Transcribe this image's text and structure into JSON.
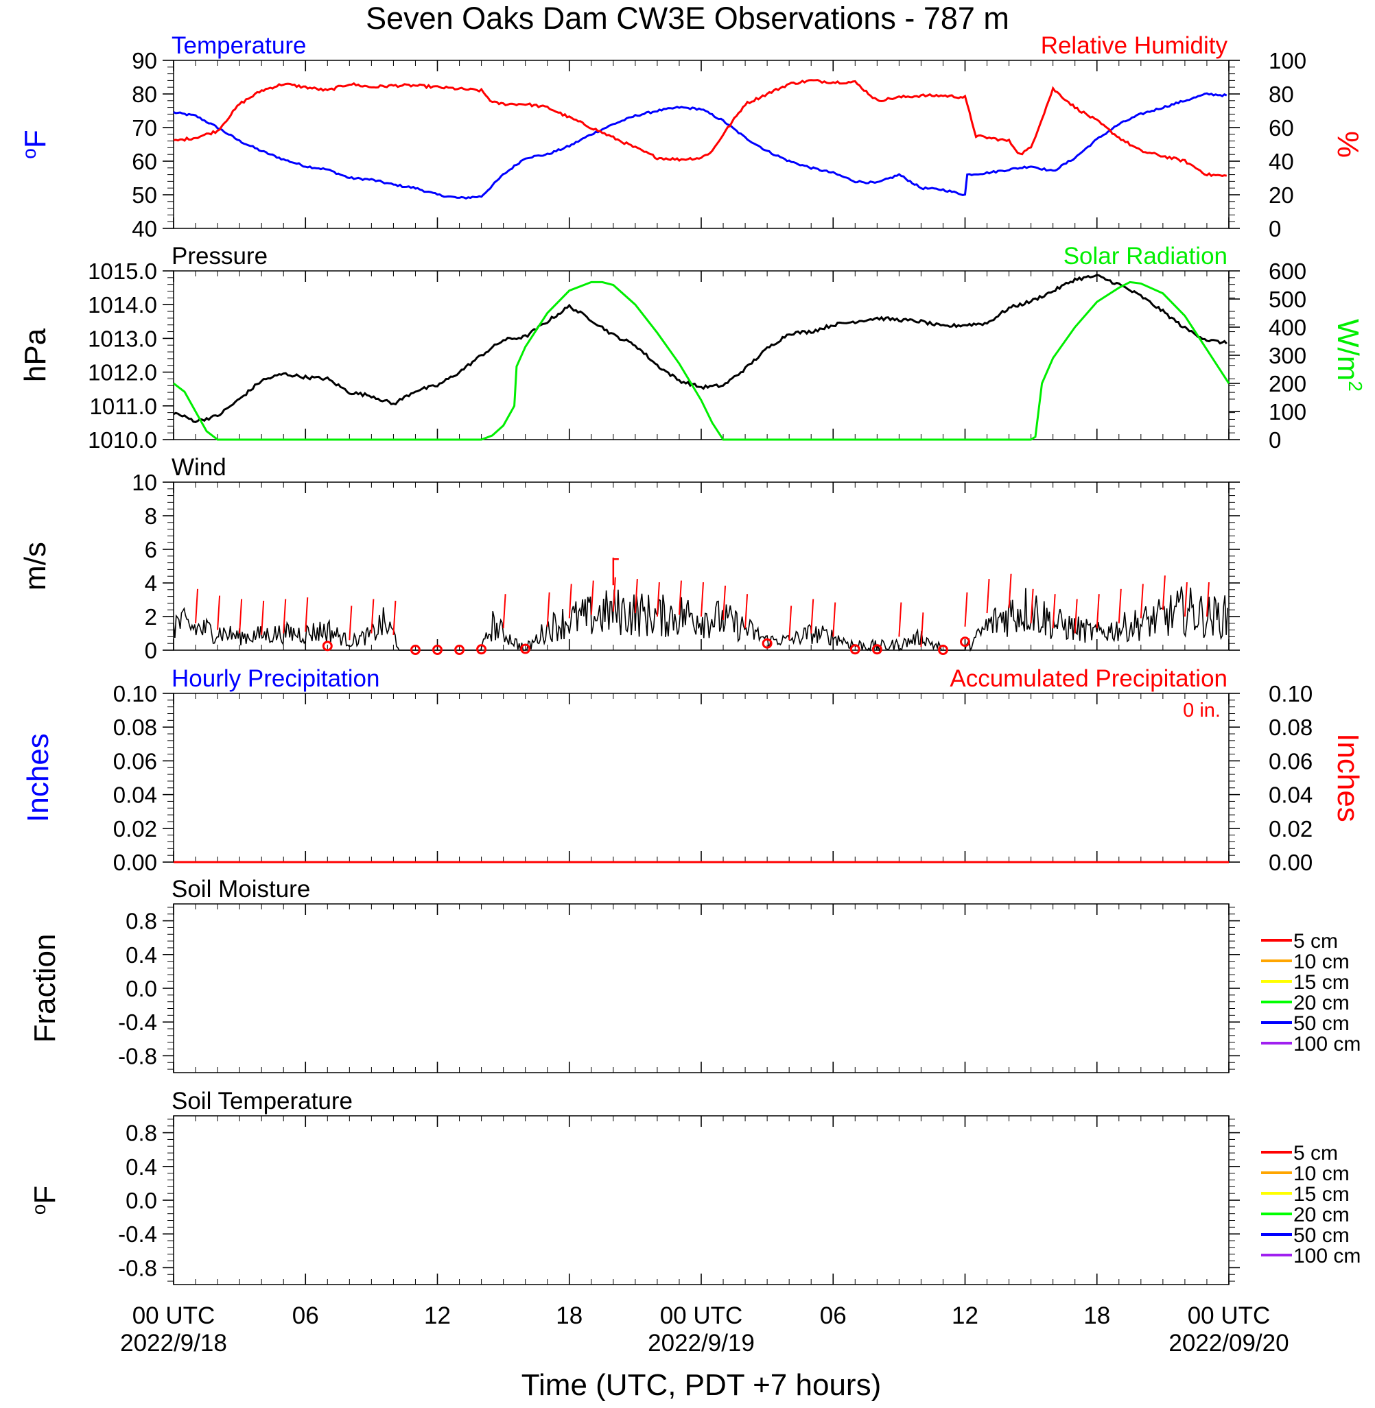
{
  "title": "Seven Oaks Dam CW3E Observations - 787 m",
  "xaxis": {
    "label": "Time (UTC, PDT +7 hours)",
    "range_hours": [
      0,
      48
    ],
    "ticks": [
      {
        "h": 0,
        "label": "00 UTC",
        "date": "2022/9/18"
      },
      {
        "h": 6,
        "label": "06",
        "date": ""
      },
      {
        "h": 12,
        "label": "12",
        "date": ""
      },
      {
        "h": 18,
        "label": "18",
        "date": ""
      },
      {
        "h": 24,
        "label": "00 UTC",
        "date": "2022/9/19"
      },
      {
        "h": 30,
        "label": "06",
        "date": ""
      },
      {
        "h": 36,
        "label": "12",
        "date": ""
      },
      {
        "h": 42,
        "label": "18",
        "date": ""
      },
      {
        "h": 48,
        "label": "00 UTC",
        "date": "2022/09/20"
      }
    ]
  },
  "colors": {
    "temperature": "#0000ff",
    "humidity": "#ff0000",
    "pressure": "#000000",
    "solar": "#00ee00",
    "wind": "#000000",
    "wind_barb": "#ff0000",
    "precip_hourly": "#0000ff",
    "precip_accum": "#ff0000"
  },
  "chart_data": [
    {
      "id": "temp_rh",
      "type": "line",
      "title_left": "Temperature",
      "title_right": "Relative Humidity",
      "ylabel_left": "oF",
      "ylabel_right": "%",
      "ylim_left": [
        40,
        90
      ],
      "yticks_left": [
        "40",
        "50",
        "60",
        "70",
        "80",
        "90"
      ],
      "ylim_right": [
        0,
        100
      ],
      "yticks_right": [
        "0",
        "20",
        "40",
        "60",
        "80",
        "100"
      ],
      "series": [
        {
          "name": "Temperature",
          "axis": "left",
          "x": [
            0,
            1,
            2,
            3,
            4,
            5,
            6,
            7,
            8,
            9,
            10,
            11,
            12,
            13,
            14,
            15,
            16,
            17,
            18,
            19,
            20,
            21,
            22,
            23,
            24,
            25,
            26,
            27,
            28,
            29,
            30,
            31,
            32,
            33,
            34,
            35,
            36,
            36.1,
            37,
            38,
            39,
            40,
            41,
            42,
            43,
            44,
            45,
            46,
            47,
            48
          ],
          "y": [
            74.5,
            73.5,
            70,
            66,
            63,
            60.5,
            58.5,
            57.5,
            55,
            54.5,
            53,
            52,
            50,
            49,
            49.5,
            56,
            61,
            62,
            64.5,
            68,
            71,
            73.5,
            75,
            76,
            75.5,
            72,
            67,
            63,
            60,
            58,
            56.5,
            54,
            53.5,
            56,
            52,
            51.5,
            50,
            56,
            56.5,
            57.5,
            58.5,
            57,
            61,
            66.5,
            71,
            74,
            76,
            78,
            80,
            79.5
          ]
        },
        {
          "name": "Relative Humidity",
          "axis": "right",
          "x": [
            0,
            1,
            2,
            2.5,
            3,
            4,
            5,
            6,
            7,
            8,
            9,
            10,
            11,
            12,
            13,
            14,
            14.5,
            15,
            16,
            17,
            18,
            19,
            20,
            21,
            22,
            23,
            24,
            24.5,
            25,
            26,
            27,
            28,
            29,
            30,
            31,
            32,
            33,
            34,
            35,
            36,
            36.5,
            37,
            38,
            38.5,
            39,
            40,
            41,
            42,
            43,
            44,
            45,
            46,
            47,
            48
          ],
          "y": [
            52,
            54,
            58,
            66,
            74,
            82,
            86,
            84,
            82,
            86,
            84,
            85,
            85,
            84,
            83,
            82,
            75,
            74,
            74,
            72,
            66,
            60,
            54,
            48,
            42,
            41,
            42,
            46,
            56,
            74,
            80,
            86,
            88,
            87,
            87,
            76,
            78,
            79,
            79,
            78,
            55,
            54,
            52,
            44,
            48,
            83,
            72,
            64,
            54,
            46,
            43,
            40,
            32,
            31
          ]
        }
      ]
    },
    {
      "id": "pressure_solar",
      "type": "line",
      "title_left": "Pressure",
      "title_right": "Solar Radiation",
      "ylabel_left": "hPa",
      "ylabel_right": "W/m",
      "ylabel_right_sup": "2",
      "ylim_left": [
        1010,
        1015
      ],
      "yticks_left": [
        "1010.0",
        "1011.0",
        "1012.0",
        "1013.0",
        "1014.0",
        "1015.0"
      ],
      "ylim_right": [
        0,
        600
      ],
      "yticks_right": [
        "0",
        "100",
        "200",
        "300",
        "400",
        "500",
        "600"
      ],
      "series": [
        {
          "name": "Pressure",
          "axis": "left",
          "x": [
            0,
            1,
            2,
            3,
            4,
            5,
            6,
            7,
            8,
            9,
            10,
            11,
            12,
            13,
            14,
            15,
            16,
            17,
            18,
            19,
            20,
            21,
            22,
            23,
            24,
            25,
            26,
            27,
            28,
            29,
            30,
            31,
            32,
            33,
            34,
            35,
            36,
            37,
            38,
            39,
            40,
            41,
            42,
            43,
            44,
            45,
            46,
            47,
            48
          ],
          "y": [
            1010.8,
            1010.55,
            1010.7,
            1011.2,
            1011.75,
            1011.95,
            1011.85,
            1011.8,
            1011.4,
            1011.3,
            1011.05,
            1011.45,
            1011.6,
            1012.0,
            1012.5,
            1012.95,
            1013.05,
            1013.5,
            1013.95,
            1013.55,
            1013.1,
            1012.8,
            1012.2,
            1011.75,
            1011.55,
            1011.6,
            1012.1,
            1012.7,
            1013.15,
            1013.2,
            1013.4,
            1013.5,
            1013.6,
            1013.55,
            1013.5,
            1013.35,
            1013.4,
            1013.45,
            1013.9,
            1014.1,
            1014.4,
            1014.75,
            1014.85,
            1014.6,
            1014.25,
            1013.8,
            1013.3,
            1012.95,
            1012.85
          ]
        },
        {
          "name": "Solar Radiation",
          "axis": "right",
          "x": [
            0,
            0.5,
            1,
            1.5,
            2,
            4,
            8,
            12,
            13,
            14,
            14.5,
            15,
            15.5,
            15.6,
            16,
            17,
            18,
            19,
            19.5,
            20,
            21,
            22,
            23,
            24,
            24.5,
            25,
            28,
            32,
            36,
            39,
            39.2,
            39.5,
            40,
            41,
            42,
            43,
            43.5,
            44,
            45,
            46,
            47,
            48
          ],
          "y": [
            200,
            170,
            100,
            30,
            0,
            0,
            0,
            0,
            0,
            0,
            15,
            50,
            120,
            260,
            330,
            450,
            530,
            560,
            560,
            550,
            480,
            380,
            270,
            140,
            60,
            0,
            0,
            0,
            0,
            0,
            10,
            200,
            290,
            400,
            490,
            540,
            560,
            555,
            520,
            440,
            320,
            200
          ]
        }
      ]
    },
    {
      "id": "wind",
      "type": "line",
      "title_left": "Wind",
      "ylabel_left": "m/s",
      "ylim_left": [
        0,
        10
      ],
      "yticks_left": [
        "0",
        "2",
        "4",
        "6",
        "8",
        "10"
      ],
      "series": [
        {
          "name": "Wind",
          "axis": "left",
          "x": [
            0,
            1,
            2,
            3,
            4,
            5,
            6,
            7,
            8,
            9,
            9.5,
            10,
            10.3,
            11,
            12,
            13,
            14,
            14.5,
            15,
            16,
            17,
            18,
            19,
            20,
            21,
            22,
            23,
            24,
            25,
            26,
            27,
            28,
            29,
            30,
            31,
            32,
            33,
            34,
            35,
            36,
            37,
            38,
            39,
            40,
            41,
            42,
            43,
            44,
            45,
            46,
            47,
            48
          ],
          "y": [
            1.7,
            1.3,
            1.1,
            0.8,
            0.9,
            1.0,
            1.0,
            1.2,
            0.5,
            0.9,
            1.6,
            1.0,
            0.0,
            0.0,
            0.0,
            0.0,
            0.0,
            1.5,
            1.0,
            0.0,
            1.3,
            1.8,
            2.0,
            2.3,
            2.2,
            2.0,
            2.1,
            2.0,
            1.8,
            1.3,
            0.6,
            0.6,
            1.0,
            0.8,
            0.3,
            0.2,
            0.3,
            0.8,
            0.0,
            0.0,
            1.4,
            2.2,
            2.5,
            1.6,
            1.3,
            1.0,
            1.3,
            1.6,
            1.9,
            2.4,
            2.0,
            2.0
          ]
        },
        {
          "name": "Wind barbs",
          "axis": "left",
          "style": "barbs",
          "x": [
            1,
            2,
            3,
            4,
            5,
            6,
            8,
            9,
            10,
            15,
            17,
            18,
            19,
            20,
            21,
            22,
            23,
            24,
            25,
            26,
            28,
            29,
            30,
            33,
            34,
            36,
            37,
            38,
            39,
            40,
            41,
            42,
            43,
            44,
            45,
            46,
            47
          ],
          "y": [
            1.6,
            1.2,
            1.0,
            0.9,
            1.0,
            1.1,
            0.6,
            1.0,
            0.9,
            1.3,
            1.4,
            1.9,
            2.1,
            2.3,
            2.2,
            2.0,
            2.1,
            2.0,
            1.8,
            1.3,
            0.6,
            1.0,
            0.8,
            0.8,
            0.2,
            1.4,
            2.2,
            2.5,
            1.6,
            1.3,
            1.0,
            1.3,
            1.6,
            1.9,
            2.4,
            2.0,
            2.0
          ]
        },
        {
          "name": "Calm",
          "axis": "left",
          "style": "circles",
          "x": [
            7,
            11,
            12,
            13,
            14,
            16,
            27,
            31,
            32,
            35,
            36
          ],
          "y": [
            0.25,
            0.02,
            0.02,
            0.02,
            0.05,
            0.08,
            0.4,
            0.05,
            0.05,
            0.02,
            0.5
          ]
        },
        {
          "name": "Gust flag",
          "axis": "left",
          "style": "flag",
          "x": [
            20
          ],
          "y": [
            5.5
          ]
        }
      ]
    },
    {
      "id": "precip",
      "type": "line",
      "title_left": "Hourly Precipitation",
      "title_right": "Accumulated Precipitation",
      "annotation": "0 in.",
      "ylabel_left": "Inches",
      "ylabel_right": "Inches",
      "ylim_left": [
        0,
        0.1
      ],
      "yticks_left": [
        "0.00",
        "0.02",
        "0.04",
        "0.06",
        "0.08",
        "0.10"
      ],
      "ylim_right": [
        0,
        0.1
      ],
      "yticks_right": [
        "0.00",
        "0.02",
        "0.04",
        "0.06",
        "0.08",
        "0.10"
      ],
      "series": [
        {
          "name": "Hourly Precipitation",
          "axis": "left",
          "x": [
            0,
            48
          ],
          "y": [
            0,
            0
          ]
        },
        {
          "name": "Accumulated Precipitation",
          "axis": "right",
          "x": [
            0,
            48
          ],
          "y": [
            0,
            0
          ]
        }
      ]
    },
    {
      "id": "soil_moisture",
      "type": "line",
      "title_left": "Soil Moisture",
      "ylabel_left": "Fraction",
      "ylim_left": [
        -1,
        1
      ],
      "yticks_left": [
        "-0.8",
        "-0.4",
        "0.0",
        "0.4",
        "0.8"
      ],
      "ytick_values": [
        -0.8,
        -0.4,
        0,
        0.4,
        0.8
      ],
      "legend": [
        {
          "label": "5 cm",
          "color": "#ff0000"
        },
        {
          "label": "10 cm",
          "color": "#ffa500"
        },
        {
          "label": "15 cm",
          "color": "#ffff00"
        },
        {
          "label": "20 cm",
          "color": "#00ff00"
        },
        {
          "label": "50 cm",
          "color": "#0000ff"
        },
        {
          "label": "100 cm",
          "color": "#a020f0"
        }
      ]
    },
    {
      "id": "soil_temp",
      "type": "line",
      "title_left": "Soil Temperature",
      "ylabel_left": "oF",
      "ylim_left": [
        -1,
        1
      ],
      "yticks_left": [
        "-0.8",
        "-0.4",
        "0.0",
        "0.4",
        "0.8"
      ],
      "ytick_values": [
        -0.8,
        -0.4,
        0,
        0.4,
        0.8
      ],
      "legend": [
        {
          "label": "5 cm",
          "color": "#ff0000"
        },
        {
          "label": "10 cm",
          "color": "#ffa500"
        },
        {
          "label": "15 cm",
          "color": "#ffff00"
        },
        {
          "label": "20 cm",
          "color": "#00ff00"
        },
        {
          "label": "50 cm",
          "color": "#0000ff"
        },
        {
          "label": "100 cm",
          "color": "#a020f0"
        }
      ]
    }
  ]
}
